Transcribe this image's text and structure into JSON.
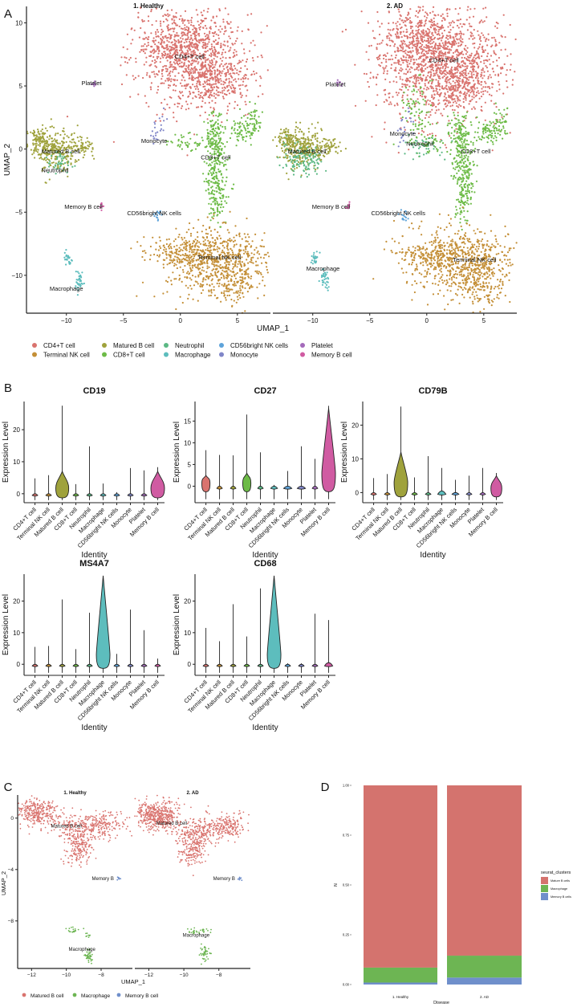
{
  "colors": {
    "CD4+T cell": "#D9736E",
    "Terminal NK cell": "#C48F37",
    "Matured B cell": "#9FA23C",
    "CD8+T cell": "#6DBB47",
    "Neutrophil": "#5BB884",
    "Macrophage": "#5DBDBD",
    "CD56bright NK cells": "#5EA3DA",
    "Monocyte": "#8086C8",
    "Platelet": "#A46BBB",
    "Memory B cell": "#D05BA2",
    "C_Matured B cell": "#D9736E",
    "C_Macrophage": "#6DB553",
    "C_Memory B cell": "#6F8FCB",
    "axis": "#222222"
  },
  "chart_data": [
    {
      "panel": "A",
      "type": "scatter",
      "panel_label": "A",
      "facets": [
        "1. Healthy",
        "2. AD"
      ],
      "xlabel": "UMAP_1",
      "ylabel": "UMAP_2",
      "xlim": [
        -13.5,
        7.9
      ],
      "ylim": [
        -13,
        11.3
      ],
      "xticks": [
        -10,
        -5,
        0,
        5
      ],
      "yticks": [
        -10,
        -5,
        0,
        5,
        10
      ],
      "legend_position": "bottom",
      "legend": [
        "CD4+T cell",
        "Terminal NK cell",
        "Matured B cell",
        "CD8+T cell",
        "Neutrophil",
        "Macrophage",
        "CD56bright NK cells",
        "Monocyte",
        "Platelet",
        "Memory B cell"
      ],
      "clusters": [
        {
          "cell": "CD4+T cell",
          "blobs": [
            [
              1.2,
              7.2,
              2.6,
              1.9,
              900
            ],
            [
              -0.5,
              8.5,
              1.5,
              1.1,
              250
            ],
            [
              3.2,
              5.3,
              1.3,
              1.0,
              200
            ]
          ],
          "ad_extra": [
            [
              1,
              6,
              3,
              2.5,
              400
            ]
          ]
        },
        {
          "cell": "CD8+T cell",
          "blobs": [
            [
              3,
              1,
              0.5,
              0.9,
              120
            ],
            [
              3.2,
              -1.5,
              0.5,
              1.3,
              150
            ],
            [
              3.3,
              -4,
              0.4,
              1.0,
              80
            ],
            [
              5.5,
              1.5,
              0.6,
              0.5,
              70
            ],
            [
              6.5,
              2.3,
              0.3,
              0.6,
              40
            ],
            [
              0.5,
              0.5,
              0.8,
              0.3,
              40
            ]
          ],
          "ad_extra": [
            [
              -0.8,
              3,
              0.6,
              1.5,
              80
            ]
          ]
        },
        {
          "cell": "Terminal NK cell",
          "blobs": [
            [
              3,
              -9,
              2.3,
              1.4,
              650
            ],
            [
              0,
              -8.2,
              1.5,
              0.6,
              150
            ],
            [
              4.8,
              -10.5,
              0.8,
              1.2,
              120
            ]
          ],
          "ad_extra": []
        },
        {
          "cell": "Matured B cell",
          "blobs": [
            [
              -11,
              0,
              1.0,
              0.8,
              300
            ],
            [
              -12.4,
              0.9,
              0.4,
              0.4,
              60
            ],
            [
              -8.5,
              0.2,
              0.5,
              0.3,
              50
            ]
          ],
          "ad_extra": []
        },
        {
          "cell": "Neutrophil",
          "blobs": [
            [
              -10.6,
              -1,
              0.7,
              0.5,
              40
            ]
          ],
          "ad_extra": [
            [
              -11,
              -0.8,
              0.9,
              0.7,
              80
            ],
            [
              -0.2,
              0.2,
              0.8,
              0.5,
              40
            ]
          ]
        },
        {
          "cell": "Platelet",
          "blobs": [
            [
              -7.6,
              5.2,
              0.15,
              0.15,
              8
            ]
          ],
          "ad_extra": []
        },
        {
          "cell": "Monocyte",
          "blobs": [
            [
              -2.2,
              1.2,
              0.2,
              0.5,
              15
            ],
            [
              -1.5,
              2.5,
              0.2,
              0.5,
              8
            ]
          ],
          "ad_extra": []
        },
        {
          "cell": "Memory B cell",
          "blobs": [
            [
              -6.9,
              -4.6,
              0.1,
              0.2,
              10
            ]
          ],
          "ad_extra": []
        },
        {
          "cell": "CD56bright NK cells",
          "blobs": [
            [
              -2,
              -5.3,
              0.2,
              0.3,
              15
            ]
          ],
          "ad_extra": []
        },
        {
          "cell": "Macrophage",
          "blobs": [
            [
              -9.8,
              -8.7,
              0.2,
              0.3,
              25
            ],
            [
              -8.9,
              -10.4,
              0.2,
              0.5,
              35
            ]
          ],
          "ad_extra": []
        }
      ],
      "labels": {
        "1. Healthy": [
          [
            "Platelet",
            -7.8,
            5.2
          ],
          [
            "CD4+T cell",
            0.8,
            7.3
          ],
          [
            "Monocyte",
            -2.3,
            0.6
          ],
          [
            "Matured B cell",
            -10.5,
            -0.2
          ],
          [
            "CD8+T cell",
            3.1,
            -0.7
          ],
          [
            "Neutrophil",
            -11,
            -1.7
          ],
          [
            "Memory B cell",
            -8.5,
            -4.6
          ],
          [
            "CD56bright NK cells",
            -2.3,
            -5.1
          ],
          [
            "Terminal NK cell",
            3.4,
            -8.6
          ],
          [
            "Macrophage",
            -10,
            -11.1
          ]
        ],
        "2. AD": [
          [
            "Platelet",
            -8,
            5.1
          ],
          [
            "CD4+T cell",
            1.5,
            7
          ],
          [
            "Monocyte",
            -2.1,
            1.2
          ],
          [
            "Neutrophil",
            -0.6,
            0.4
          ],
          [
            "Matured B cell",
            -10.5,
            -0.2
          ],
          [
            "CD8+T cell",
            4.3,
            -0.2
          ],
          [
            "Memory B cell",
            -8.4,
            -4.6
          ],
          [
            "CD56bright NK cells",
            -2.5,
            -5.1
          ],
          [
            "Terminal NK cell",
            4.2,
            -8.8
          ],
          [
            "Macrophage",
            -9.1,
            -9.5
          ]
        ]
      }
    },
    {
      "panel": "B",
      "type": "violin",
      "panel_label": "B",
      "xlabel": "Identity",
      "ylabel": "Expression Level",
      "categories": [
        "CD4+T cell",
        "Terminal NK cell",
        "Matured B cell",
        "CD8+T cell",
        "Neutrophil",
        "Macrophage",
        "CD56bright NK cells",
        "Monocyte",
        "Platelet",
        "Memory B cell"
      ],
      "genes": [
        {
          "title": "CD19",
          "ylim": [
            -2.8,
            28.8
          ],
          "yticks": [
            0,
            10,
            20
          ],
          "max": [
            4.8,
            5.8,
            27.5,
            3,
            14.8,
            3.2,
            0.5,
            8,
            7.3,
            8.3
          ],
          "body_top": [
            0,
            0,
            7,
            0,
            0,
            0,
            0,
            0,
            0,
            7
          ],
          "body_width": [
            0.4,
            0.4,
            0.95,
            0.4,
            0.4,
            0.4,
            0.4,
            0.4,
            0.4,
            1
          ]
        },
        {
          "title": "CD27",
          "ylim": [
            -3.8,
            19.5
          ],
          "yticks": [
            0,
            5,
            10,
            15
          ],
          "max": [
            8.3,
            7.2,
            7.1,
            16.5,
            7.8,
            0.3,
            3.5,
            9.2,
            6.3,
            18.5
          ],
          "body_top": [
            2.5,
            0,
            0,
            3,
            0,
            0,
            0,
            0,
            0,
            18
          ],
          "body_width": [
            0.6,
            0.4,
            0.4,
            0.6,
            0.4,
            0.5,
            0.6,
            0.6,
            0.4,
            1
          ]
        },
        {
          "title": "CD79B",
          "ylim": [
            -3,
            27
          ],
          "yticks": [
            0,
            10,
            20
          ],
          "max": [
            4.3,
            5.5,
            25.5,
            4.5,
            10.8,
            7.3,
            3.8,
            5,
            7.3,
            5.8
          ],
          "body_top": [
            0,
            0,
            12,
            0,
            0,
            1,
            0,
            0,
            0,
            5
          ],
          "body_width": [
            0.4,
            0.4,
            1,
            0.4,
            0.4,
            0.6,
            0.5,
            0.4,
            0.4,
            0.8
          ]
        },
        {
          "title": "MS4A7",
          "ylim": [
            -3.5,
            28.5
          ],
          "yticks": [
            0,
            10,
            20
          ],
          "max": [
            5.5,
            5.8,
            20.5,
            4.8,
            16.3,
            28,
            3.3,
            17.3,
            10.8,
            1.8
          ],
          "body_top": [
            0,
            0,
            0,
            0,
            0,
            28,
            0,
            0,
            0,
            0
          ],
          "body_width": [
            0.4,
            0.4,
            0.4,
            0.4,
            0.4,
            1,
            0.4,
            0.4,
            0.4,
            0.4
          ]
        },
        {
          "title": "CD68",
          "ylim": [
            -3.5,
            28.5
          ],
          "yticks": [
            0,
            10,
            20
          ],
          "max": [
            11.5,
            7.3,
            19,
            8.8,
            24,
            28,
            0.3,
            0.3,
            16,
            14
          ],
          "body_top": [
            0,
            0,
            0,
            0,
            0,
            28,
            0,
            0,
            0,
            1
          ],
          "body_width": [
            0.4,
            0.4,
            0.4,
            0.4,
            0.4,
            1,
            0.4,
            0.4,
            0.4,
            0.6
          ]
        }
      ]
    },
    {
      "panel": "C",
      "type": "scatter",
      "panel_label": "C",
      "facets": [
        "1. Healthy",
        "2. AD"
      ],
      "xlabel": "UMAP_1",
      "ylabel": "UMAP_2",
      "xlim": [
        -12.8,
        -6.2
      ],
      "ylim": [
        -11.7,
        1.8
      ],
      "xticks": [
        -12,
        -10,
        -8
      ],
      "yticks": [
        -8,
        -4,
        0
      ],
      "legend_position": "bottom",
      "legend": [
        "Matured B cell",
        "Macrophage",
        "Memory B cell"
      ],
      "clusters": {
        "1. Healthy": [
          {
            "cell": "Matured B cell",
            "blobs": [
              [
                -11.7,
                0.4,
                0.6,
                0.5,
                300
              ],
              [
                -9.3,
                -0.9,
                0.7,
                0.6,
                200
              ],
              [
                -7.8,
                -0.5,
                0.6,
                0.5,
                150
              ],
              [
                -9.3,
                -2.4,
                0.4,
                0.6,
                150
              ]
            ]
          },
          {
            "cell": "Macrophage",
            "blobs": [
              [
                -9.6,
                -8.7,
                0.15,
                0.12,
                20
              ],
              [
                -8.7,
                -9.1,
                0.1,
                0.1,
                8
              ],
              [
                -8.7,
                -10.8,
                0.15,
                0.3,
                40
              ]
            ]
          },
          {
            "cell": "Memory B cell",
            "blobs": [
              [
                -7,
                -4.7,
                0.08,
                0.08,
                8
              ]
            ]
          }
        ],
        "2. AD": [
          {
            "cell": "Matured B cell",
            "blobs": [
              [
                -11.5,
                0.2,
                0.6,
                0.6,
                450
              ],
              [
                -9.2,
                -1.1,
                0.6,
                0.6,
                200
              ],
              [
                -7.6,
                -0.6,
                0.6,
                0.5,
                200
              ],
              [
                -9.5,
                -2.5,
                0.4,
                0.6,
                150
              ]
            ]
          },
          {
            "cell": "Macrophage",
            "blobs": [
              [
                -9.3,
                -8.8,
                0.35,
                0.12,
                30
              ],
              [
                -8.8,
                -10.6,
                0.15,
                0.3,
                45
              ]
            ]
          },
          {
            "cell": "Memory B cell",
            "blobs": [
              [
                -6.8,
                -4.7,
                0.08,
                0.08,
                8
              ]
            ]
          }
        ]
      },
      "labels": {
        "1. Healthy": [
          [
            "Matured B cell",
            -10,
            -0.6
          ],
          [
            "Memory B",
            -7.9,
            -4.7
          ],
          [
            "Macrophage",
            -9.1,
            -10.2
          ]
        ],
        "2. AD": [
          [
            "Matured B cell",
            -10.7,
            -0.4
          ],
          [
            "Memory B",
            -7.7,
            -4.7
          ],
          [
            "Macrophage",
            -9.3,
            -9.1
          ]
        ]
      }
    },
    {
      "panel": "D",
      "type": "bar",
      "stacked": true,
      "panel_label": "D",
      "categories": [
        "1. Healthy",
        "2. AD"
      ],
      "xlabel": "Disease",
      "ylabel": "N",
      "ylim": [
        0,
        1
      ],
      "yticks": [
        "0.00",
        "0.25",
        "0.50",
        "0.75",
        "1.00"
      ],
      "legend_title": "seurat_clusters",
      "legend_position": "right",
      "series": [
        {
          "name": "Memory B cells",
          "color": "#6F8FCB",
          "values": [
            0.01,
            0.035
          ]
        },
        {
          "name": "Macrophage",
          "color": "#6DB553",
          "values": [
            0.075,
            0.11
          ]
        },
        {
          "name": "Mature B cells",
          "color": "#D4736E",
          "values": [
            0.915,
            0.855
          ]
        }
      ],
      "legend": [
        "Mature B cells",
        "Macrophage",
        "Memory B cells"
      ]
    }
  ]
}
